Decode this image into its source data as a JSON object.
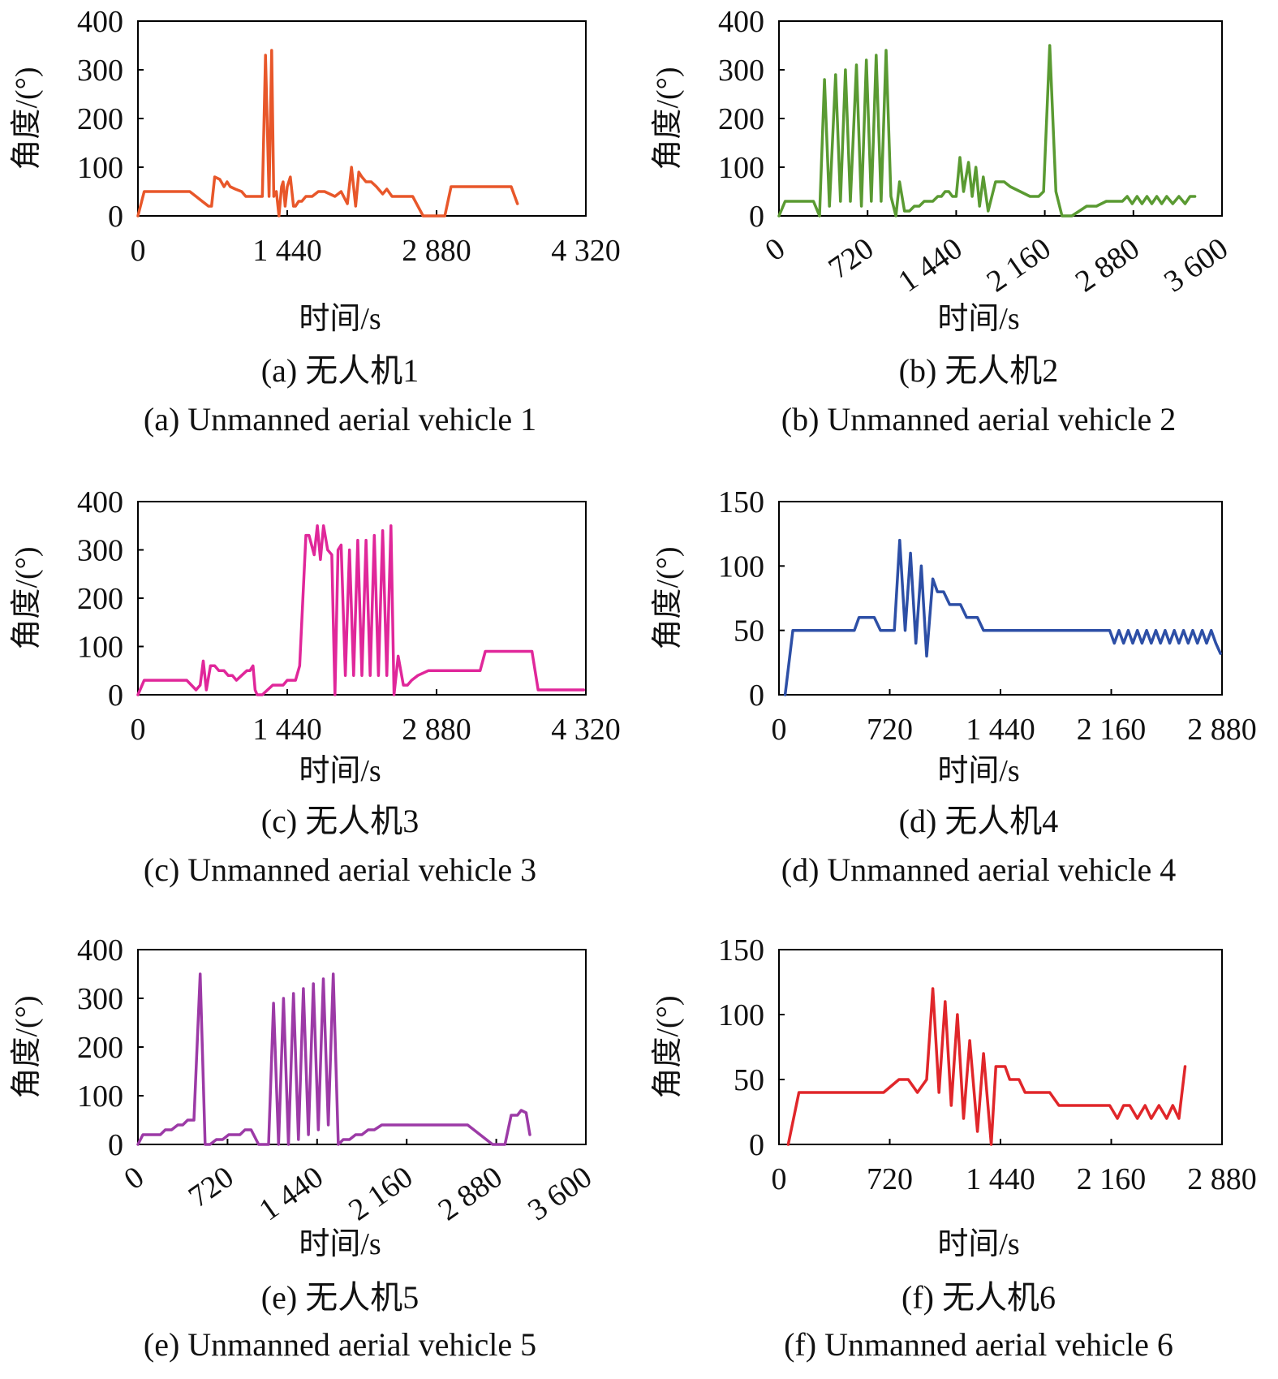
{
  "chart_data": [
    {
      "type": "line",
      "panel": "a",
      "caption_cn": "(a) 无人机1",
      "caption_en": "(a) Unmanned aerial vehicle 1",
      "xlabel": "时间/s",
      "ylabel": "角度/(°)",
      "xlim": [
        0,
        4320
      ],
      "ylim": [
        0,
        400
      ],
      "xticks": [
        0,
        1440,
        2880,
        4320
      ],
      "xtick_labels": [
        "0",
        "1 440",
        "2 880",
        "4 320"
      ],
      "xticks_rotated": false,
      "yticks": [
        0,
        100,
        200,
        300,
        400
      ],
      "ytick_labels": [
        "0",
        "100",
        "200",
        "300",
        "400"
      ],
      "color": "#e8572a",
      "series": [
        {
          "x": [
            0,
            60,
            500,
            560,
            620,
            680,
            710,
            740,
            790,
            830,
            860,
            890,
            940,
            1000,
            1040,
            1080,
            1140,
            1200,
            1230,
            1265,
            1290,
            1310,
            1335,
            1360,
            1385,
            1400,
            1420,
            1440,
            1470,
            1500,
            1520,
            1550,
            1580,
            1620,
            1680,
            1740,
            1800,
            1900,
            1960,
            2020,
            2060,
            2100,
            2130,
            2160,
            2200,
            2250,
            2300,
            2360,
            2400,
            2450,
            2500,
            2550,
            2650,
            2750,
            2780,
            2960,
            3020,
            3070,
            3110,
            3600,
            3660
          ],
          "y": [
            0,
            50,
            50,
            40,
            30,
            20,
            20,
            80,
            75,
            60,
            70,
            60,
            55,
            50,
            40,
            40,
            40,
            40,
            330,
            40,
            340,
            40,
            50,
            0,
            60,
            70,
            20,
            60,
            80,
            20,
            20,
            30,
            30,
            40,
            40,
            50,
            50,
            40,
            50,
            25,
            100,
            20,
            90,
            80,
            70,
            70,
            60,
            45,
            55,
            40,
            40,
            40,
            40,
            0,
            0,
            0,
            60,
            60,
            60,
            60,
            25
          ]
        }
      ]
    },
    {
      "type": "line",
      "panel": "b",
      "caption_cn": "(b) 无人机2",
      "caption_en": "(b) Unmanned aerial vehicle 2",
      "xlabel": "时间/s",
      "ylabel": "角度/(°)",
      "xlim": [
        0,
        3600
      ],
      "ylim": [
        0,
        400
      ],
      "xticks": [
        0,
        720,
        1440,
        2160,
        2880,
        3600
      ],
      "xtick_labels": [
        "0",
        "720",
        "1 440",
        "2 160",
        "2 880",
        "3 600"
      ],
      "xticks_rotated": true,
      "yticks": [
        0,
        100,
        200,
        300,
        400
      ],
      "ytick_labels": [
        "0",
        "100",
        "200",
        "300",
        "400"
      ],
      "color": "#5a9a32",
      "series": [
        {
          "x": [
            0,
            50,
            280,
            330,
            370,
            410,
            460,
            500,
            540,
            580,
            630,
            670,
            710,
            750,
            790,
            830,
            870,
            910,
            950,
            980,
            1020,
            1060,
            1100,
            1140,
            1180,
            1250,
            1290,
            1320,
            1350,
            1380,
            1410,
            1440,
            1470,
            1500,
            1540,
            1570,
            1600,
            1630,
            1660,
            1700,
            1760,
            1830,
            1880,
            1960,
            2040,
            2070,
            2090,
            2110,
            2150,
            2200,
            2250,
            2300,
            2380,
            2500,
            2580,
            2660,
            2710,
            2750,
            2790,
            2830,
            2870,
            2910,
            2950,
            2990,
            3030,
            3070,
            3110,
            3150,
            3200,
            3250,
            3300,
            3340,
            3380
          ],
          "y": [
            0,
            30,
            30,
            0,
            280,
            20,
            290,
            30,
            300,
            30,
            310,
            20,
            320,
            30,
            330,
            30,
            340,
            40,
            0,
            70,
            10,
            10,
            20,
            20,
            30,
            30,
            40,
            40,
            50,
            50,
            40,
            40,
            120,
            50,
            110,
            40,
            100,
            20,
            80,
            10,
            70,
            70,
            60,
            50,
            40,
            40,
            40,
            40,
            50,
            350,
            50,
            0,
            0,
            20,
            20,
            30,
            30,
            30,
            30,
            40,
            25,
            40,
            25,
            40,
            25,
            40,
            25,
            40,
            25,
            40,
            25,
            40,
            40
          ]
        }
      ]
    },
    {
      "type": "line",
      "panel": "c",
      "caption_cn": "(c) 无人机3",
      "caption_en": "(c) Unmanned aerial vehicle 3",
      "xlabel": "时间/s",
      "ylabel": "角度/(°)",
      "xlim": [
        0,
        4320
      ],
      "ylim": [
        0,
        400
      ],
      "xticks": [
        0,
        1440,
        2880,
        4320
      ],
      "xtick_labels": [
        "0",
        "1 440",
        "2 880",
        "4 320"
      ],
      "xticks_rotated": false,
      "yticks": [
        0,
        100,
        200,
        300,
        400
      ],
      "ytick_labels": [
        "0",
        "100",
        "200",
        "300",
        "400"
      ],
      "color": "#e0279a",
      "series": [
        {
          "x": [
            0,
            60,
            470,
            560,
            600,
            630,
            660,
            700,
            740,
            780,
            830,
            870,
            910,
            950,
            1000,
            1050,
            1080,
            1110,
            1130,
            1150,
            1200,
            1250,
            1300,
            1350,
            1400,
            1440,
            1480,
            1520,
            1560,
            1620,
            1650,
            1700,
            1730,
            1760,
            1790,
            1830,
            1870,
            1900,
            1930,
            1960,
            2000,
            2040,
            2080,
            2120,
            2160,
            2200,
            2240,
            2280,
            2320,
            2360,
            2400,
            2440,
            2470,
            2510,
            2560,
            2600,
            2640,
            2700,
            2800,
            3000,
            3300,
            3350,
            3400,
            3800,
            3860,
            4300
          ],
          "y": [
            0,
            30,
            30,
            10,
            20,
            70,
            10,
            60,
            60,
            50,
            50,
            40,
            40,
            30,
            40,
            50,
            50,
            60,
            10,
            0,
            0,
            10,
            20,
            20,
            20,
            30,
            30,
            30,
            60,
            330,
            330,
            290,
            350,
            280,
            350,
            300,
            290,
            0,
            300,
            310,
            40,
            300,
            40,
            320,
            40,
            320,
            40,
            330,
            40,
            340,
            40,
            350,
            0,
            80,
            20,
            20,
            30,
            40,
            50,
            50,
            50,
            90,
            90,
            90,
            10,
            10
          ]
        }
      ]
    },
    {
      "type": "line",
      "panel": "d",
      "caption_cn": "(d) 无人机4",
      "caption_en": "(d) Unmanned aerial vehicle 4",
      "xlabel": "时间/s",
      "ylabel": "角度/(°)",
      "xlim": [
        0,
        2880
      ],
      "ylim": [
        0,
        150
      ],
      "xticks": [
        0,
        720,
        1440,
        2160,
        2880
      ],
      "xtick_labels": [
        "0",
        "720",
        "1 440",
        "2 160",
        "2 880"
      ],
      "xticks_rotated": false,
      "yticks": [
        0,
        50,
        100,
        150
      ],
      "ytick_labels": [
        "0",
        "50",
        "100",
        "150"
      ],
      "color": "#2d4fa6",
      "series": [
        {
          "x": [
            40,
            90,
            490,
            520,
            620,
            660,
            700,
            750,
            785,
            820,
            855,
            890,
            925,
            960,
            1000,
            1030,
            1070,
            1110,
            1150,
            1180,
            1220,
            1250,
            1290,
            1330,
            1360,
            1400,
            2150,
            2180,
            2210,
            2240,
            2270,
            2300,
            2330,
            2360,
            2390,
            2420,
            2450,
            2480,
            2510,
            2540,
            2570,
            2600,
            2630,
            2660,
            2690,
            2720,
            2750,
            2780,
            2810,
            2840,
            2870
          ],
          "y": [
            0,
            50,
            50,
            60,
            60,
            50,
            50,
            50,
            120,
            50,
            110,
            40,
            100,
            30,
            90,
            80,
            80,
            70,
            70,
            70,
            60,
            60,
            60,
            50,
            50,
            50,
            50,
            40,
            50,
            40,
            50,
            40,
            50,
            40,
            50,
            40,
            50,
            40,
            50,
            40,
            50,
            40,
            50,
            40,
            50,
            40,
            50,
            40,
            50,
            40,
            32
          ]
        }
      ]
    },
    {
      "type": "line",
      "panel": "e",
      "caption_cn": "(e) 无人机5",
      "caption_en": "(e) Unmanned aerial vehicle 5",
      "xlabel": "时间/s",
      "ylabel": "角度/(°)",
      "xlim": [
        0,
        3600
      ],
      "ylim": [
        0,
        400
      ],
      "xticks": [
        0,
        720,
        1440,
        2160,
        2880,
        3600
      ],
      "xtick_labels": [
        "0",
        "720",
        "1 440",
        "2 160",
        "2 880",
        "3 600"
      ],
      "xticks_rotated": true,
      "yticks": [
        0,
        100,
        200,
        300,
        400
      ],
      "ytick_labels": [
        "0",
        "100",
        "200",
        "300",
        "400"
      ],
      "color": "#9c3aa6",
      "series": [
        {
          "x": [
            0,
            40,
            180,
            220,
            270,
            320,
            360,
            400,
            450,
            500,
            540,
            580,
            630,
            680,
            730,
            780,
            820,
            860,
            910,
            970,
            1050,
            1090,
            1130,
            1170,
            1210,
            1250,
            1290,
            1330,
            1370,
            1410,
            1450,
            1490,
            1530,
            1570,
            1610,
            1650,
            1700,
            1750,
            1800,
            1850,
            1900,
            1960,
            2050,
            2200,
            2400,
            2600,
            2650,
            2700,
            2850,
            2870,
            2950,
            3000,
            3050,
            3080,
            3120,
            3150
          ],
          "y": [
            0,
            20,
            20,
            30,
            30,
            40,
            40,
            50,
            50,
            350,
            0,
            0,
            10,
            10,
            20,
            20,
            20,
            30,
            30,
            0,
            0,
            290,
            0,
            300,
            0,
            310,
            10,
            320,
            20,
            330,
            30,
            340,
            40,
            350,
            0,
            10,
            10,
            20,
            20,
            30,
            30,
            40,
            40,
            40,
            40,
            40,
            40,
            30,
            0,
            0,
            0,
            60,
            60,
            70,
            65,
            20
          ]
        }
      ]
    },
    {
      "type": "line",
      "panel": "f",
      "caption_cn": "(f) 无人机6",
      "caption_en": "(f) Unmanned aerial vehicle 6",
      "xlabel": "时间/s",
      "ylabel": "角度/(°)",
      "xlim": [
        0,
        2880
      ],
      "ylim": [
        0,
        150
      ],
      "xticks": [
        0,
        720,
        1440,
        2160,
        2880
      ],
      "xtick_labels": [
        "0",
        "720",
        "1 440",
        "2 160",
        "2 880"
      ],
      "xticks_rotated": false,
      "yticks": [
        0,
        50,
        100,
        150
      ],
      "ytick_labels": [
        "0",
        "50",
        "100",
        "150"
      ],
      "color": "#e0262a",
      "series": [
        {
          "x": [
            60,
            130,
            600,
            680,
            780,
            840,
            900,
            960,
            1000,
            1040,
            1080,
            1120,
            1160,
            1200,
            1240,
            1290,
            1330,
            1380,
            1410,
            1440,
            1470,
            1500,
            1560,
            1600,
            1640,
            1700,
            1760,
            1820,
            1900,
            2000,
            2150,
            2200,
            2240,
            2280,
            2330,
            2380,
            2420,
            2470,
            2520,
            2560,
            2600,
            2640
          ],
          "y": [
            0,
            40,
            40,
            40,
            50,
            50,
            40,
            50,
            120,
            40,
            110,
            30,
            100,
            20,
            80,
            10,
            70,
            0,
            60,
            60,
            60,
            50,
            50,
            40,
            40,
            40,
            40,
            30,
            30,
            30,
            30,
            20,
            30,
            30,
            20,
            30,
            20,
            30,
            20,
            30,
            20,
            60
          ]
        }
      ]
    }
  ]
}
